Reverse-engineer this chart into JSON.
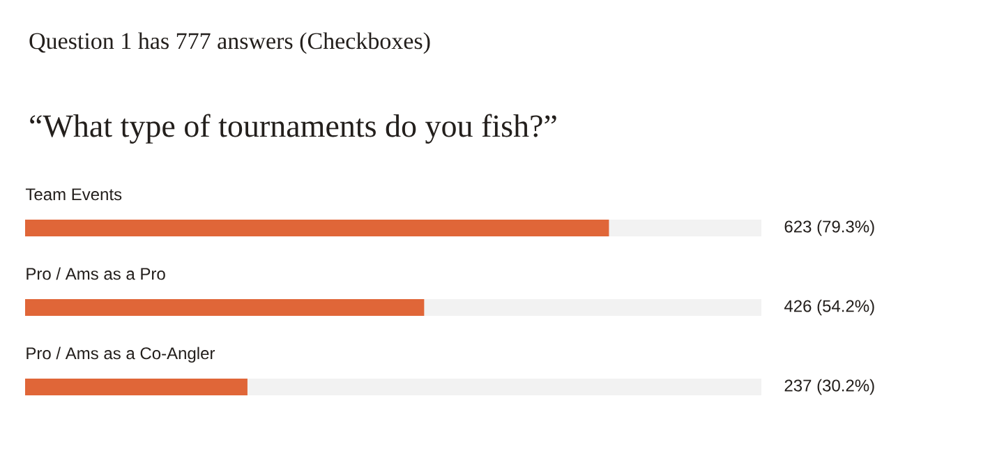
{
  "chart_data": {
    "type": "bar",
    "orientation": "horizontal",
    "title": "Question 1 has 777 answers (Checkboxes)",
    "subtitle": "“What type of tournaments do you fish?”",
    "categories": [
      "Team Events",
      "Pro / Ams as a Pro",
      "Pro / Ams as a Co-Angler"
    ],
    "values": [
      79.3,
      54.2,
      30.2
    ],
    "value_labels": [
      "623 (79.3%)",
      "426 (54.2%)",
      "237 (30.2%)"
    ],
    "color": "#e06638",
    "xlim": [
      0,
      100
    ]
  }
}
